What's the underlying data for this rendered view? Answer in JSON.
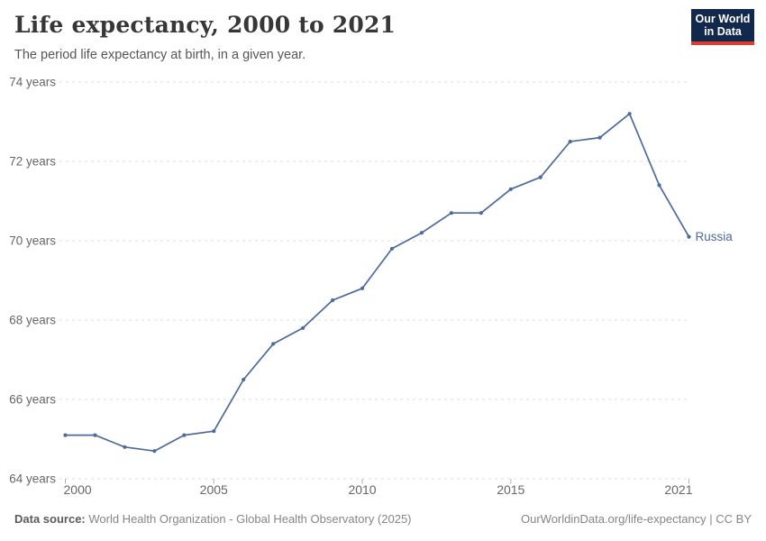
{
  "header": {
    "title": "Life expectancy, 2000 to 2021",
    "subtitle": "The period life expectancy at birth, in a given year."
  },
  "logo": {
    "line1": "Our World",
    "line2": "in Data",
    "bg_color": "#12294d",
    "stripe_color": "#dc3e31"
  },
  "footer": {
    "source_label": "Data source:",
    "source_text": " World Health Organization - Global Health Observatory (2025)",
    "license_text": "OurWorldinData.org/life-expectancy | CC BY"
  },
  "chart_data": {
    "type": "line",
    "title": "Life expectancy, 2000 to 2021",
    "subtitle": "The period life expectancy at birth, in a given year.",
    "x": [
      2000,
      2001,
      2002,
      2003,
      2004,
      2005,
      2006,
      2007,
      2008,
      2009,
      2010,
      2011,
      2012,
      2013,
      2014,
      2015,
      2016,
      2017,
      2018,
      2019,
      2020,
      2021
    ],
    "series": [
      {
        "name": "Russia",
        "color": "#4c6a9c",
        "values": [
          65.1,
          65.1,
          64.8,
          64.7,
          65.1,
          65.2,
          66.5,
          67.4,
          67.8,
          68.5,
          68.8,
          69.8,
          70.2,
          70.7,
          70.7,
          71.3,
          71.6,
          72.5,
          72.6,
          73.2,
          71.4,
          70.1
        ]
      }
    ],
    "xlabel": "",
    "ylabel": "",
    "xlim": [
      2000,
      2021
    ],
    "ylim": [
      64,
      74.5
    ],
    "x_ticks": [
      2000,
      2005,
      2010,
      2015,
      2021
    ],
    "y_ticks": [
      64,
      66,
      68,
      70,
      72,
      74
    ],
    "y_tick_suffix": " years",
    "grid": "horizontal-dashed",
    "grid_color": "#dcdcdc",
    "tick_mark_color": "#b0b0b0",
    "axis_label_color": "#666666",
    "legend": "end-of-line-label",
    "end_label": "Russia"
  }
}
